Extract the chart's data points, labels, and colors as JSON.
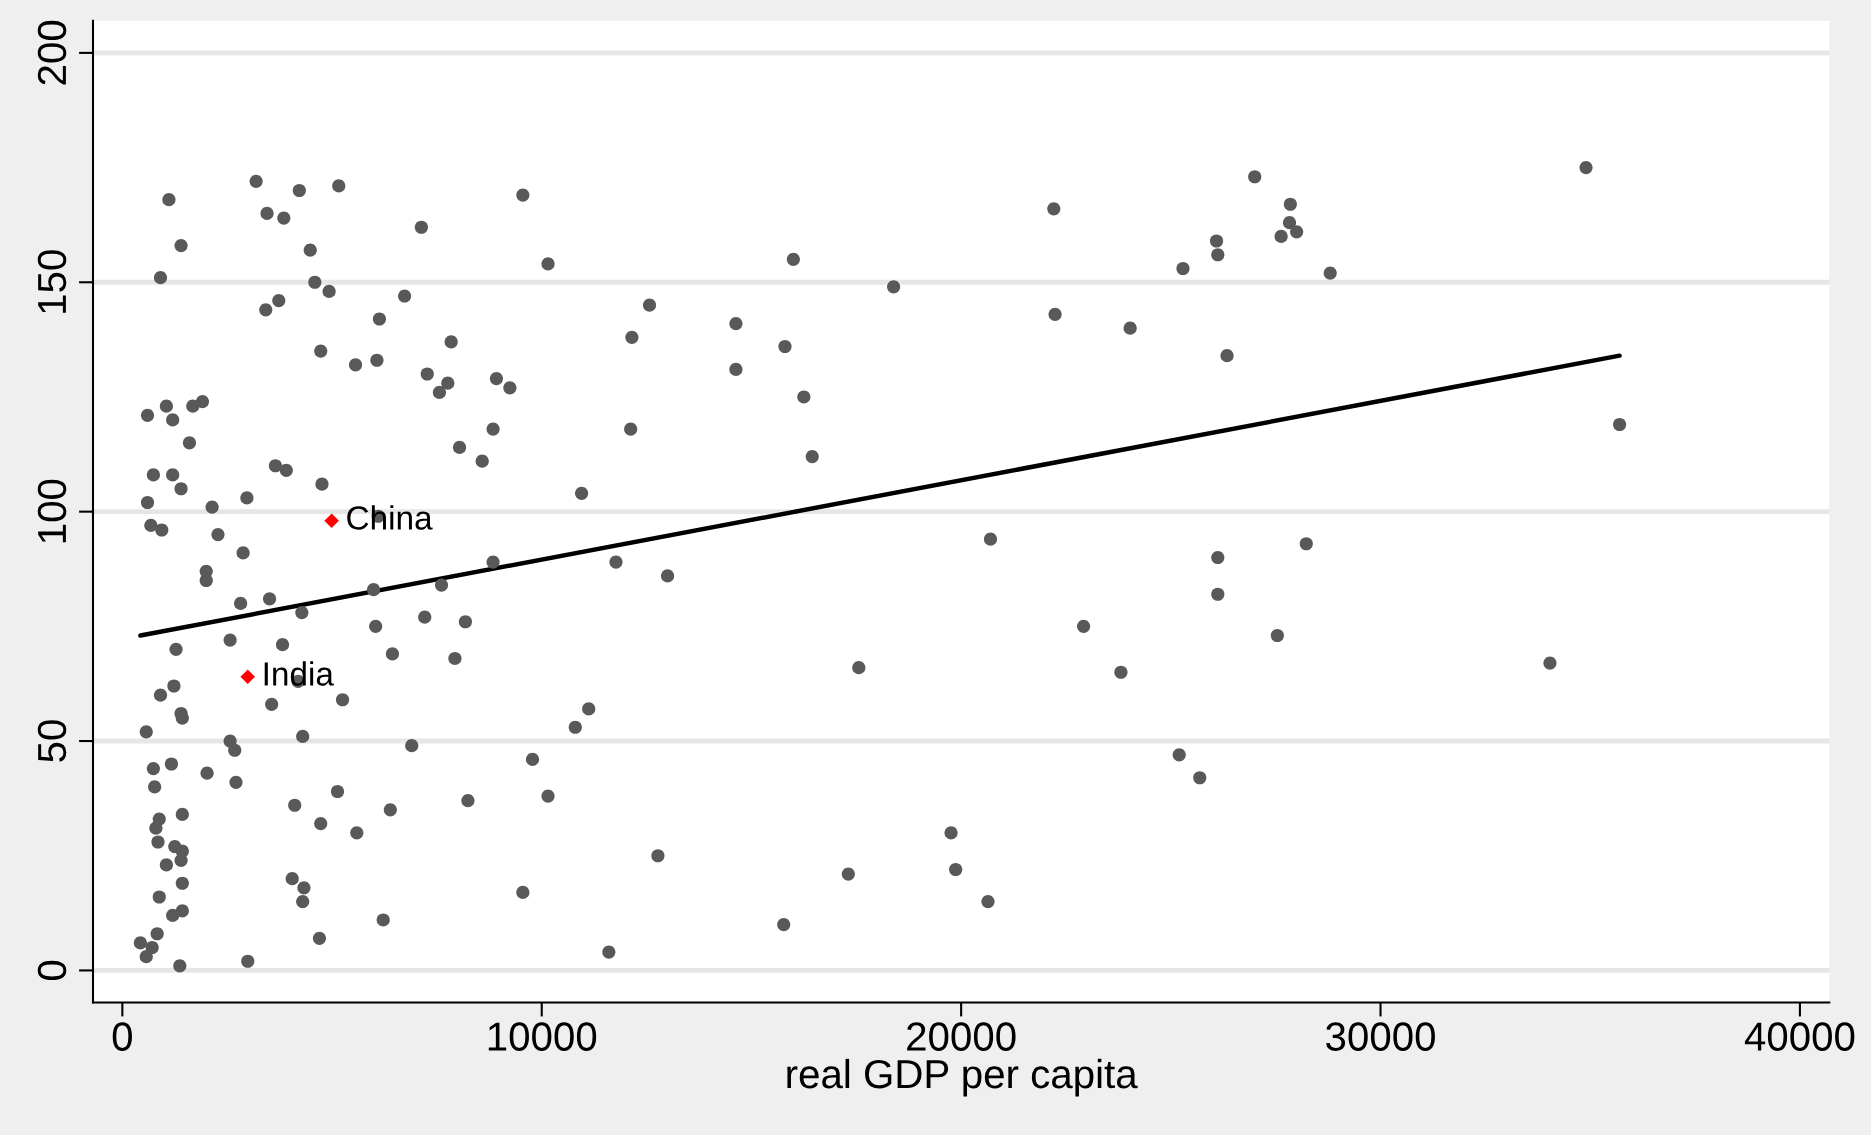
{
  "chart_data": {
    "type": "scatter",
    "xlabel": "real GDP per capita",
    "xlim": [
      -700,
      40700
    ],
    "ylim": [
      -7,
      207
    ],
    "xticks": [
      0,
      10000,
      20000,
      30000,
      40000
    ],
    "yticks": [
      0,
      50,
      100,
      150,
      200
    ],
    "grid": "y",
    "legend": false,
    "series": [
      {
        "color": "#595959",
        "marker": "circle",
        "x": [
          34900,
          27000,
          3190,
          5160,
          4220,
          9550,
          1110,
          27850,
          7130,
          3450,
          3850,
          22210,
          27830,
          28000,
          27630,
          26090,
          1400,
          26120,
          4480,
          16000,
          10150,
          25290,
          28800,
          910,
          4590,
          18390,
          4930,
          6730,
          3730,
          12570,
          3420,
          22240,
          6130,
          14630,
          24030,
          12150,
          7840,
          15800,
          4730,
          26340,
          6070,
          5560,
          14630,
          7270,
          8920,
          7760,
          9240,
          7560,
          16250,
          1910,
          1050,
          1680,
          600,
          1200,
          35700,
          12120,
          8840,
          1600,
          8040,
          16450,
          8580,
          3650,
          3910,
          740,
          1200,
          4760,
          1400,
          10950,
          2970,
          600,
          2140,
          6100,
          680,
          940,
          2280,
          20700,
          28230,
          2880,
          26120,
          8840,
          11770,
          2000,
          13000,
          2000,
          7610,
          5990,
          26120,
          3510,
          2820,
          4280,
          7210,
          8180,
          22920,
          6040,
          27540,
          2570,
          3820,
          1280,
          6440,
          7930,
          34040,
          17560,
          23810,
          4190,
          1230,
          910,
          5250,
          3560,
          11120,
          10800,
          1400,
          1430,
          570,
          4300,
          2570,
          2680,
          6900,
          25200,
          9780,
          1170,
          740,
          2020,
          25690,
          2710,
          770,
          5130,
          10150,
          8240,
          4110,
          6390,
          1430,
          880,
          4730,
          800,
          5590,
          19760,
          850,
          1250,
          1430,
          12770,
          1400,
          1050,
          19870,
          17310,
          4050,
          1430,
          4330,
          9550,
          880,
          4300,
          20640,
          1430,
          1200,
          6220,
          15770,
          830,
          4700,
          430,
          710,
          11600,
          570,
          2990,
          1370
        ],
        "values": [
          175,
          173,
          172,
          171,
          170,
          169,
          168,
          167,
          162,
          165,
          164,
          166,
          163,
          161,
          160,
          159,
          158,
          156,
          157,
          155,
          154,
          153,
          152,
          151,
          150,
          149,
          148,
          147,
          146,
          145,
          144,
          143,
          142,
          141,
          140,
          138,
          137,
          136,
          135,
          134,
          133,
          132,
          131,
          130,
          129,
          128,
          127,
          126,
          125,
          124,
          123,
          123,
          121,
          120,
          119,
          118,
          118,
          115,
          114,
          112,
          111,
          110,
          109,
          108,
          108,
          106,
          105,
          104,
          103,
          102,
          101,
          99,
          97,
          96,
          95,
          94,
          93,
          91,
          90,
          89,
          89,
          87,
          86,
          85,
          84,
          83,
          82,
          81,
          80,
          78,
          77,
          76,
          75,
          75,
          73,
          72,
          71,
          70,
          69,
          68,
          67,
          66,
          65,
          63,
          62,
          60,
          59,
          58,
          57,
          53,
          56,
          55,
          52,
          51,
          50,
          48,
          49,
          47,
          46,
          45,
          44,
          43,
          42,
          41,
          40,
          39,
          38,
          37,
          36,
          35,
          34,
          33,
          32,
          31,
          30,
          30,
          28,
          27,
          26,
          25,
          24,
          23,
          22,
          21,
          20,
          19,
          18,
          17,
          16,
          15,
          15,
          13,
          12,
          11,
          10,
          8,
          7,
          6,
          5,
          4,
          3,
          2,
          1
        ]
      },
      {
        "color": "#ff0000",
        "marker": "diamond",
        "x": [
          4990,
          2990
        ],
        "values": [
          98,
          64
        ]
      },
      {
        "type": "line",
        "color": "#000000",
        "marker": "none",
        "x": [
          430,
          35700
        ],
        "values": [
          73,
          134
        ]
      }
    ],
    "annotations": [
      {
        "text": "China",
        "x": 4990,
        "y": 98
      },
      {
        "text": "India",
        "x": 2990,
        "y": 64
      }
    ]
  }
}
